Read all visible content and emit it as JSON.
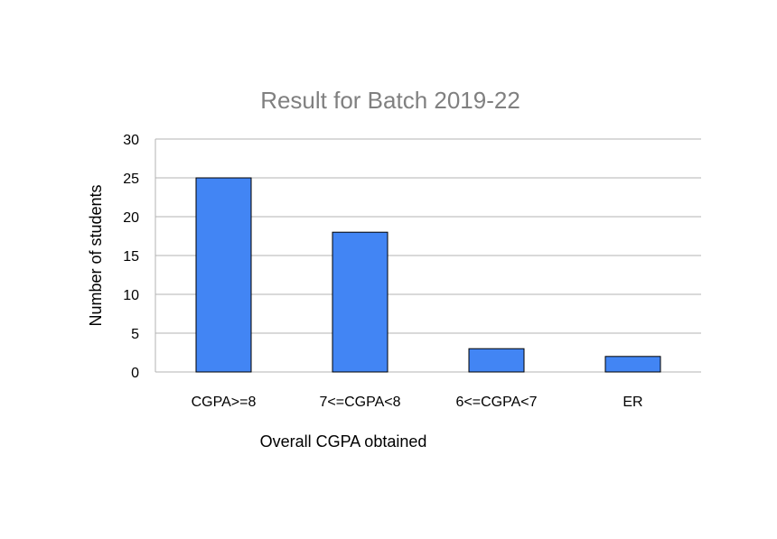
{
  "chart_data": {
    "type": "bar",
    "title": "Result for Batch 2019-22",
    "xlabel": "Overall CGPA obtained",
    "ylabel": "Number of students",
    "categories": [
      "CGPA>=8",
      "7<=CGPA<8",
      "6<=CGPA<7",
      "ER"
    ],
    "values": [
      25,
      18,
      3,
      2
    ],
    "ylim": [
      0,
      30
    ],
    "yticks": [
      "0",
      "5",
      "10",
      "15",
      "20",
      "25",
      "30"
    ],
    "grid": true,
    "legend": "none",
    "bar_color": "#4285f4",
    "grid_color": "#b3b3b3",
    "title_color": "#808080"
  }
}
